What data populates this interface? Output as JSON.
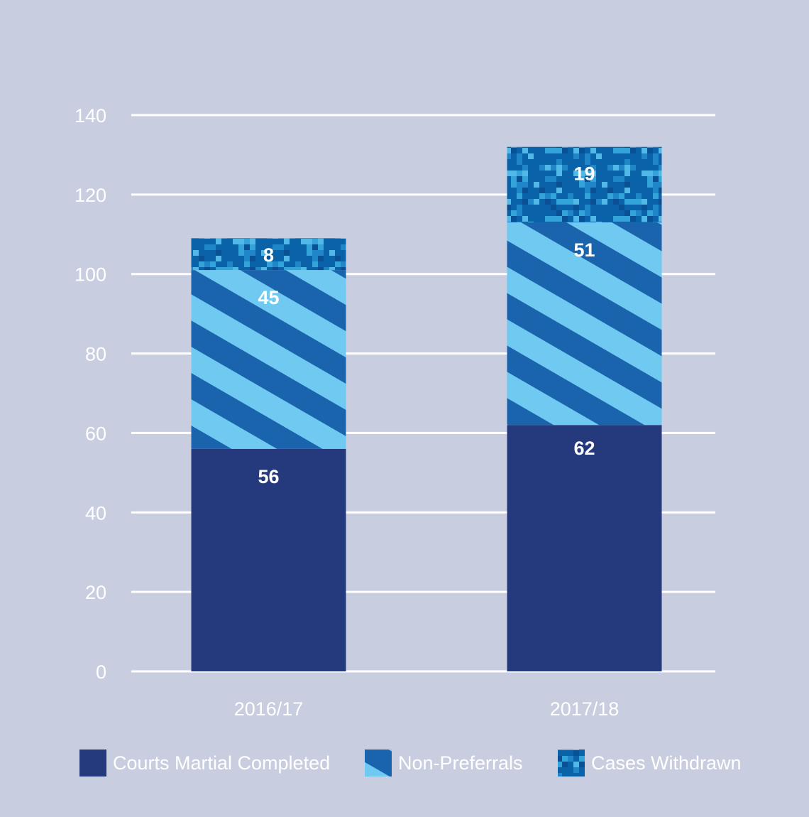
{
  "chart_data": {
    "type": "bar",
    "stacked": true,
    "categories": [
      "2016/17",
      "2017/18"
    ],
    "series": [
      {
        "name": "Courts Martial Completed",
        "values": [
          56,
          62
        ],
        "color": "#253a7c",
        "fill": "solid"
      },
      {
        "name": "Non-Preferrals",
        "values": [
          45,
          51
        ],
        "color": "#1a63ad",
        "color2": "#6fc9f1",
        "fill": "diagonal-stripes"
      },
      {
        "name": "Cases Withdrawn",
        "values": [
          8,
          19
        ],
        "color": "#0a62a8",
        "color2": "#32a4da",
        "fill": "pixel-camouflage"
      }
    ],
    "ylim": [
      0,
      140
    ],
    "yticks": [
      0,
      20,
      40,
      60,
      80,
      100,
      120,
      140
    ],
    "grid": true,
    "legend": "bottom",
    "title": "",
    "xlabel": "",
    "ylabel": ""
  }
}
